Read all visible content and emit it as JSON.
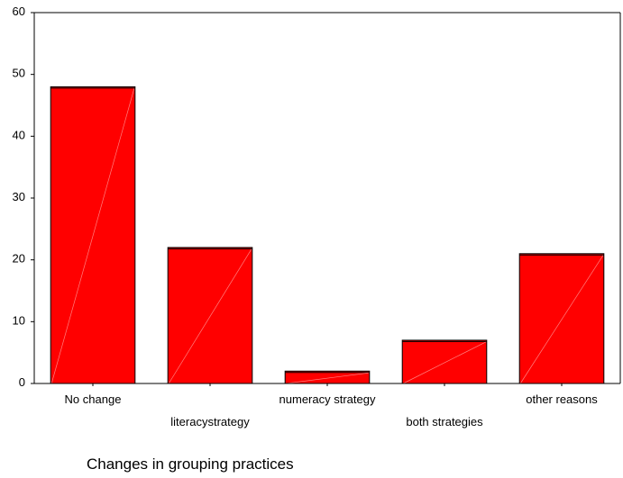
{
  "chart_data": {
    "type": "bar",
    "title": "",
    "xlabel": "Changes in grouping practices",
    "ylabel": "",
    "categories": [
      "No change",
      "literacystrategy",
      "numeracy strategy",
      "both strategies",
      "other reasons"
    ],
    "values": [
      48,
      22,
      2,
      7,
      21
    ],
    "ylim": [
      0,
      60
    ],
    "yticks": [
      0,
      10,
      20,
      30,
      40,
      50,
      60
    ],
    "grid": false,
    "bar_color": "#ff0000",
    "bar_outline_color": "#000000"
  }
}
